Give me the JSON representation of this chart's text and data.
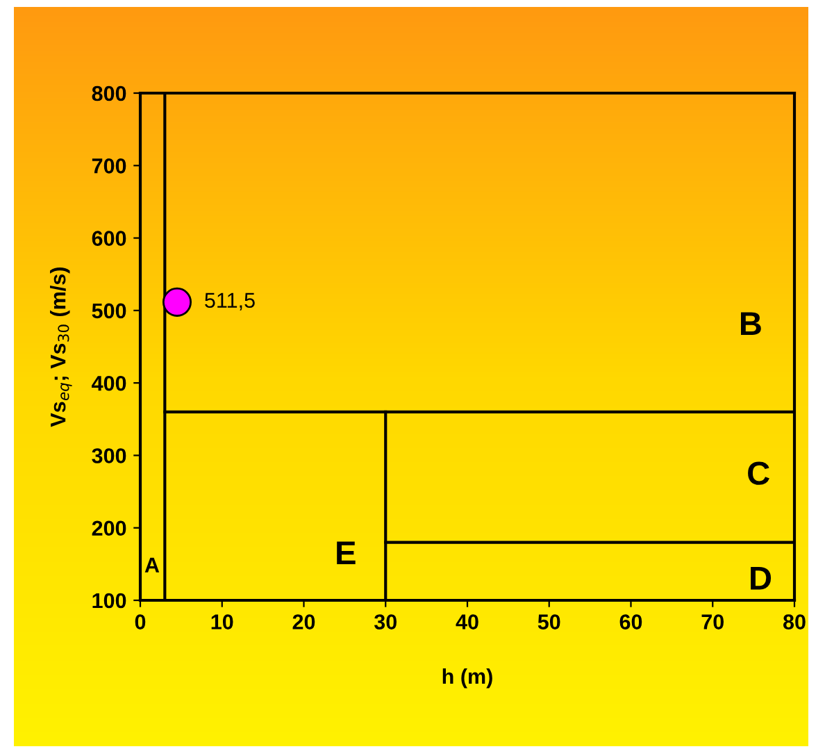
{
  "chart_data": {
    "type": "line",
    "xlabel": "h (m)",
    "ylabel": "Vs$_{eq}$; Vs$_{30}$ (m/s)",
    "xlim": [
      0,
      80
    ],
    "ylim": [
      100,
      800
    ],
    "xticks": [
      0,
      10,
      20,
      30,
      40,
      50,
      60,
      70,
      80
    ],
    "yticks": [
      100,
      200,
      300,
      400,
      500,
      600,
      700,
      800
    ],
    "grid": false,
    "series": [
      {
        "color": "#000000",
        "x": [
          3,
          3
        ],
        "values": [
          100,
          800
        ],
        "marker": "none"
      },
      {
        "color": "#000000",
        "x": [
          3,
          80
        ],
        "values": [
          360,
          360
        ],
        "marker": "none"
      },
      {
        "color": "#000000",
        "x": [
          30,
          30
        ],
        "values": [
          100,
          360
        ],
        "marker": "none"
      },
      {
        "color": "#000000",
        "x": [
          30,
          80
        ],
        "values": [
          180,
          180
        ],
        "marker": "none"
      },
      {
        "type": "scatter",
        "color": "#ff00ff",
        "x": [
          4.5
        ],
        "values": [
          511.5
        ],
        "value_labels": [
          "511,5"
        ],
        "marker": "circle"
      }
    ],
    "annotations": [
      "A",
      "B",
      "C",
      "D",
      "E"
    ]
  }
}
